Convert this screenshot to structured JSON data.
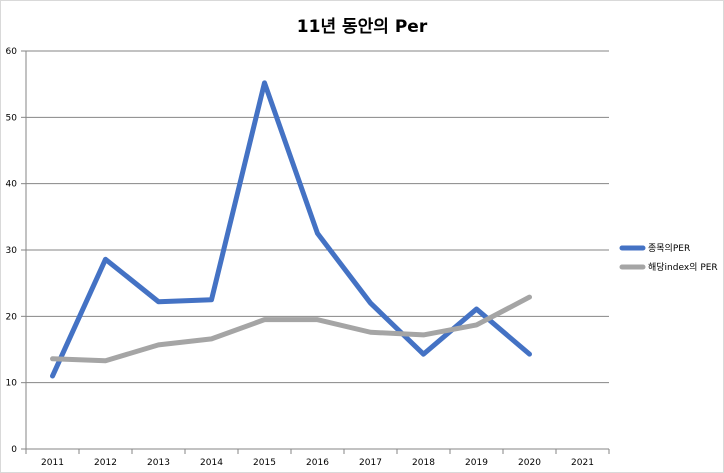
{
  "chart_data": {
    "type": "line",
    "title": "11년 동안의 Per",
    "categories": [
      "2011",
      "2012",
      "2013",
      "2014",
      "2015",
      "2016",
      "2017",
      "2018",
      "2019",
      "2020",
      "2021"
    ],
    "ylim": [
      0,
      60
    ],
    "yticks": [
      0,
      10,
      20,
      30,
      40,
      50,
      60
    ],
    "grid": true,
    "legend_position": "right",
    "series": [
      {
        "name": "종목의PER",
        "color": "#4472c4",
        "values": [
          11.0,
          28.6,
          22.2,
          22.5,
          55.2,
          32.5,
          22.0,
          14.3,
          21.1,
          14.3,
          null
        ]
      },
      {
        "name": "해당index의 PER",
        "color": "#a5a5a5",
        "values": [
          13.6,
          13.3,
          15.7,
          16.6,
          19.5,
          19.5,
          17.6,
          17.2,
          18.7,
          22.9,
          null
        ]
      }
    ]
  }
}
